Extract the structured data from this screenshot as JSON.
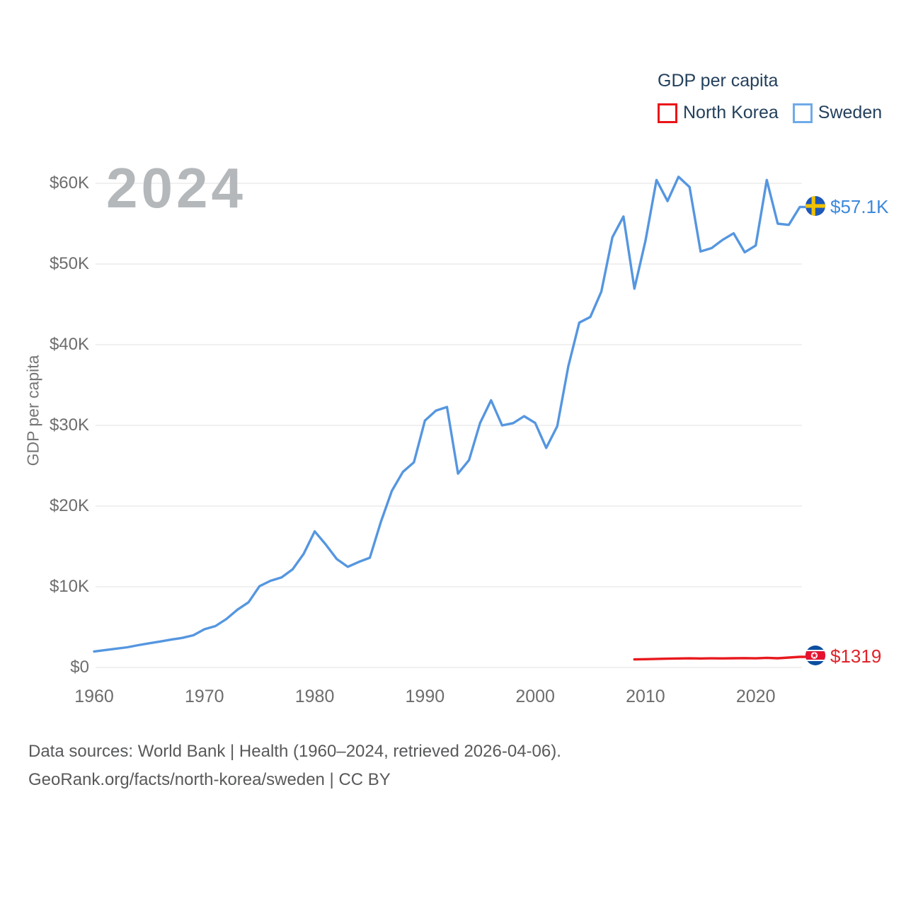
{
  "legend": {
    "title": "GDP per capita",
    "items": [
      {
        "label": "North Korea",
        "color": "#ea1418"
      },
      {
        "label": "Sweden",
        "color": "#6faae8"
      }
    ]
  },
  "watermark": "2024",
  "y_axis_title": "GDP per capita",
  "chart_data": {
    "type": "line",
    "title": "GDP per capita",
    "xlabel": "",
    "ylabel": "GDP per capita",
    "xlim": [
      1960,
      2024
    ],
    "ylim": [
      0,
      60000
    ],
    "grid": "horizontal",
    "legend_position": "top-right",
    "x_ticks": [
      1960,
      1970,
      1980,
      1990,
      2000,
      2010,
      2020
    ],
    "y_ticks": [
      {
        "label": "$60K",
        "value": 60000
      },
      {
        "label": "$50K",
        "value": 50000
      },
      {
        "label": "$40K",
        "value": 40000
      },
      {
        "label": "$30K",
        "value": 30000
      },
      {
        "label": "$20K",
        "value": 20000
      },
      {
        "label": "$10K",
        "value": 10000
      },
      {
        "label": "$0",
        "value": 0
      }
    ],
    "series": [
      {
        "name": "Sweden",
        "color": "#5596e0",
        "start_year": 1960,
        "end_year": 2024,
        "end_label": "$57.1K",
        "end_label_color": "#3d89dd",
        "flag": "sweden",
        "values": [
          1983,
          2160,
          2330,
          2500,
          2760,
          3000,
          3220,
          3460,
          3670,
          3990,
          4740,
          5130,
          6010,
          7170,
          8080,
          10080,
          10750,
          11160,
          12160,
          14080,
          16870,
          15250,
          13450,
          12470,
          13080,
          13600,
          18020,
          21890,
          24240,
          25430,
          30590,
          31830,
          32280,
          24030,
          25710,
          30280,
          33110,
          30000,
          30280,
          31140,
          30310,
          27210,
          29900,
          37320,
          42740,
          43440,
          46590,
          53320,
          55890,
          46950,
          52870,
          60410,
          57800,
          60810,
          59540,
          51550,
          51970,
          53000,
          53810,
          51460,
          52300,
          60410,
          55000,
          54850,
          57073
        ]
      },
      {
        "name": "North Korea",
        "color": "#e8191e",
        "start_year": 2009,
        "end_year": 2024,
        "end_label": "$1319",
        "end_label_color": "#e0222a",
        "flag": "north-korea",
        "values": [
          1000,
          1030,
          1060,
          1090,
          1110,
          1130,
          1110,
          1130,
          1120,
          1140,
          1160,
          1130,
          1190,
          1140,
          1230,
          1319
        ]
      }
    ]
  },
  "footer": {
    "line1": "Data sources: World Bank | Health (1960–2024, retrieved 2026-04-06).",
    "line2": "GeoRank.org/facts/north-korea/sweden | CC BY"
  }
}
